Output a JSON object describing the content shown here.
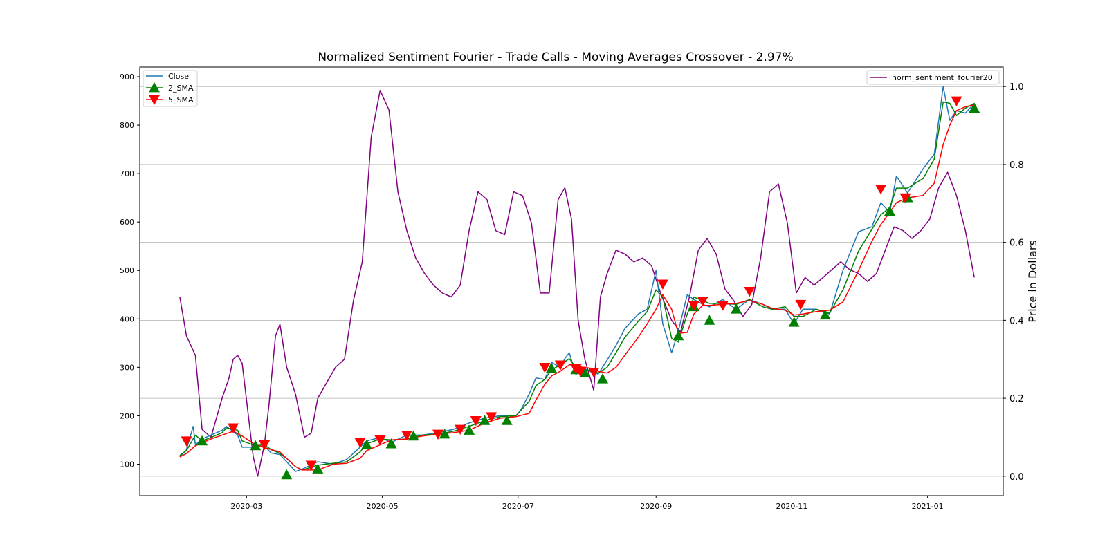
{
  "chart_data": {
    "type": "line",
    "title": "Normalized Sentiment Fourier - Trade Calls - Moving Averages Crossover - 2.97%",
    "xlabel": "",
    "ylabel_left": "",
    "ylabel_right": "Price in Dollars",
    "x_ticks": [
      "2020-03",
      "2020-05",
      "2020-07",
      "2020-09",
      "2020-11",
      "2021-01"
    ],
    "x_tick_dates": [
      "2020-03-01",
      "2020-05-01",
      "2020-07-01",
      "2020-09-01",
      "2020-11-01",
      "2021-01-01"
    ],
    "x_range": [
      "2020-01-13",
      "2021-02-04"
    ],
    "ylim_left": [
      35,
      920
    ],
    "yticks_left": [
      100,
      200,
      300,
      400,
      500,
      600,
      700,
      800,
      900
    ],
    "ylim_right": [
      -0.05,
      1.05
    ],
    "yticks_right": [
      "0.0",
      "0.2",
      "0.4",
      "0.6",
      "0.8",
      "1.0"
    ],
    "grid": "horizontal grid on right axis",
    "legend_left_placement": "upper left",
    "legend_right_placement": "upper right",
    "colors": {
      "close": "#1f77b4",
      "sma2": "#008000",
      "sma5": "#ff0000",
      "sentiment": "#800080",
      "buy_marker": "#008000",
      "sell_marker": "#ff0000"
    },
    "legend_left": [
      {
        "label": "Close",
        "color": "#1f77b4",
        "marker": "none"
      },
      {
        "label": "2_SMA",
        "color": "#008000",
        "marker": "triangle-up"
      },
      {
        "label": "5_SMA",
        "color": "#ff0000",
        "marker": "triangle-down"
      }
    ],
    "legend_right": [
      {
        "label": "norm_sentiment_fourier20",
        "color": "#800080",
        "marker": "none"
      }
    ],
    "close": {
      "dates": [
        "2020-01-31",
        "2020-02-03",
        "2020-02-06",
        "2020-02-07",
        "2020-02-10",
        "2020-02-14",
        "2020-02-19",
        "2020-02-21",
        "2020-02-26",
        "2020-02-28",
        "2020-03-05",
        "2020-03-09",
        "2020-03-12",
        "2020-03-16",
        "2020-03-19",
        "2020-03-23",
        "2020-03-26",
        "2020-04-02",
        "2020-04-09",
        "2020-04-15",
        "2020-04-21",
        "2020-04-24",
        "2020-04-30",
        "2020-05-05",
        "2020-05-12",
        "2020-05-19",
        "2020-05-26",
        "2020-06-02",
        "2020-06-09",
        "2020-06-16",
        "2020-06-23",
        "2020-06-30",
        "2020-07-02",
        "2020-07-06",
        "2020-07-09",
        "2020-07-13",
        "2020-07-16",
        "2020-07-20",
        "2020-07-22",
        "2020-07-24",
        "2020-07-27",
        "2020-07-30",
        "2020-08-03",
        "2020-08-06",
        "2020-08-10",
        "2020-08-14",
        "2020-08-18",
        "2020-08-24",
        "2020-08-28",
        "2020-09-01",
        "2020-09-04",
        "2020-09-08",
        "2020-09-11",
        "2020-09-15",
        "2020-09-18",
        "2020-09-22",
        "2020-09-25",
        "2020-10-01",
        "2020-10-07",
        "2020-10-13",
        "2020-10-19",
        "2020-10-23",
        "2020-10-29",
        "2020-11-02",
        "2020-11-06",
        "2020-11-12",
        "2020-11-18",
        "2020-11-24",
        "2020-12-01",
        "2020-12-07",
        "2020-12-11",
        "2020-12-15",
        "2020-12-18",
        "2020-12-23",
        "2020-12-30",
        "2021-01-04",
        "2021-01-08",
        "2021-01-11",
        "2021-01-14",
        "2021-01-18",
        "2021-01-22"
      ],
      "values": [
        115,
        130,
        178,
        140,
        152,
        160,
        170,
        178,
        160,
        135,
        135,
        138,
        123,
        120,
        105,
        85,
        90,
        105,
        100,
        110,
        135,
        148,
        155,
        145,
        160,
        160,
        165,
        172,
        185,
        195,
        200,
        200,
        210,
        245,
        278,
        275,
        310,
        300,
        318,
        330,
        285,
        300,
        290,
        286,
        315,
        345,
        380,
        410,
        420,
        500,
        390,
        330,
        375,
        450,
        440,
        430,
        425,
        440,
        420,
        440,
        430,
        420,
        420,
        390,
        420,
        420,
        410,
        500,
        580,
        590,
        640,
        620,
        695,
        660,
        710,
        740,
        880,
        810,
        830,
        825,
        845
      ]
    },
    "sma2": {
      "dates": [
        "2020-01-31",
        "2020-02-03",
        "2020-02-07",
        "2020-02-10",
        "2020-02-14",
        "2020-02-19",
        "2020-02-21",
        "2020-02-26",
        "2020-02-28",
        "2020-03-05",
        "2020-03-09",
        "2020-03-12",
        "2020-03-16",
        "2020-03-19",
        "2020-03-23",
        "2020-03-26",
        "2020-04-02",
        "2020-04-09",
        "2020-04-15",
        "2020-04-21",
        "2020-04-24",
        "2020-04-30",
        "2020-05-05",
        "2020-05-12",
        "2020-05-19",
        "2020-05-26",
        "2020-06-02",
        "2020-06-09",
        "2020-06-16",
        "2020-06-23",
        "2020-06-30",
        "2020-07-06",
        "2020-07-09",
        "2020-07-13",
        "2020-07-16",
        "2020-07-20",
        "2020-07-24",
        "2020-07-27",
        "2020-07-30",
        "2020-08-03",
        "2020-08-06",
        "2020-08-10",
        "2020-08-14",
        "2020-08-18",
        "2020-08-24",
        "2020-08-28",
        "2020-09-01",
        "2020-09-04",
        "2020-09-08",
        "2020-09-11",
        "2020-09-15",
        "2020-09-18",
        "2020-09-25",
        "2020-10-01",
        "2020-10-07",
        "2020-10-13",
        "2020-10-19",
        "2020-10-23",
        "2020-10-29",
        "2020-11-02",
        "2020-11-06",
        "2020-11-12",
        "2020-11-18",
        "2020-11-24",
        "2020-12-01",
        "2020-12-07",
        "2020-12-11",
        "2020-12-15",
        "2020-12-18",
        "2020-12-23",
        "2020-12-30",
        "2021-01-04",
        "2021-01-08",
        "2021-01-11",
        "2021-01-14",
        "2021-01-18",
        "2021-01-22"
      ],
      "values": [
        118,
        128,
        160,
        148,
        155,
        165,
        175,
        170,
        148,
        138,
        140,
        130,
        122,
        112,
        95,
        88,
        98,
        102,
        105,
        125,
        142,
        152,
        150,
        152,
        160,
        162,
        168,
        178,
        190,
        198,
        200,
        230,
        262,
        275,
        295,
        305,
        318,
        300,
        292,
        295,
        288,
        300,
        330,
        362,
        395,
        415,
        460,
        445,
        360,
        352,
        410,
        445,
        432,
        432,
        430,
        440,
        425,
        420,
        425,
        405,
        405,
        420,
        412,
        460,
        540,
        585,
        615,
        630,
        670,
        670,
        690,
        730,
        848,
        845,
        820,
        835,
        845
      ]
    },
    "sma5": {
      "dates": [
        "2020-01-31",
        "2020-02-03",
        "2020-02-07",
        "2020-02-14",
        "2020-02-19",
        "2020-02-24",
        "2020-02-28",
        "2020-03-05",
        "2020-03-12",
        "2020-03-16",
        "2020-03-19",
        "2020-03-23",
        "2020-03-26",
        "2020-04-02",
        "2020-04-09",
        "2020-04-15",
        "2020-04-21",
        "2020-04-24",
        "2020-04-30",
        "2020-05-05",
        "2020-05-12",
        "2020-05-19",
        "2020-05-26",
        "2020-06-02",
        "2020-06-09",
        "2020-06-16",
        "2020-06-23",
        "2020-06-30",
        "2020-07-06",
        "2020-07-09",
        "2020-07-13",
        "2020-07-16",
        "2020-07-20",
        "2020-07-24",
        "2020-07-27",
        "2020-07-30",
        "2020-08-03",
        "2020-08-06",
        "2020-08-10",
        "2020-08-14",
        "2020-08-18",
        "2020-08-24",
        "2020-08-28",
        "2020-09-01",
        "2020-09-04",
        "2020-09-08",
        "2020-09-11",
        "2020-09-15",
        "2020-09-18",
        "2020-09-22",
        "2020-09-25",
        "2020-10-01",
        "2020-10-07",
        "2020-10-13",
        "2020-10-19",
        "2020-10-23",
        "2020-10-29",
        "2020-11-02",
        "2020-11-06",
        "2020-11-12",
        "2020-11-18",
        "2020-11-24",
        "2020-12-01",
        "2020-12-07",
        "2020-12-11",
        "2020-12-15",
        "2020-12-18",
        "2020-12-23",
        "2020-12-30",
        "2021-01-04",
        "2021-01-08",
        "2021-01-11",
        "2021-01-14",
        "2021-01-18",
        "2021-01-22"
      ],
      "values": [
        115,
        122,
        138,
        152,
        160,
        168,
        158,
        140,
        130,
        125,
        112,
        95,
        88,
        88,
        100,
        102,
        112,
        128,
        140,
        150,
        152,
        158,
        162,
        165,
        170,
        185,
        195,
        198,
        205,
        232,
        265,
        282,
        292,
        305,
        305,
        300,
        298,
        292,
        288,
        300,
        325,
        362,
        390,
        420,
        450,
        420,
        370,
        372,
        410,
        428,
        428,
        430,
        432,
        438,
        430,
        422,
        418,
        408,
        410,
        415,
        418,
        435,
        500,
        560,
        595,
        620,
        640,
        650,
        655,
        680,
        760,
        800,
        830,
        838,
        842
      ]
    },
    "buy_signals": {
      "dates": [
        "2020-02-10",
        "2020-03-05",
        "2020-03-19",
        "2020-04-02",
        "2020-04-24",
        "2020-05-05",
        "2020-05-15",
        "2020-05-29",
        "2020-06-09",
        "2020-06-16",
        "2020-06-26",
        "2020-07-16",
        "2020-07-27",
        "2020-07-31",
        "2020-08-08",
        "2020-09-11",
        "2020-09-18",
        "2020-09-25",
        "2020-10-07",
        "2020-11-02",
        "2020-11-16",
        "2020-12-15",
        "2020-12-23",
        "2021-01-22"
      ],
      "values": [
        148,
        138,
        78,
        90,
        140,
        142,
        158,
        162,
        170,
        190,
        190,
        298,
        295,
        289,
        276,
        365,
        425,
        397,
        420,
        393,
        408,
        622,
        650,
        835
      ]
    },
    "sell_signals": {
      "dates": [
        "2020-02-03",
        "2020-02-24",
        "2020-03-09",
        "2020-03-30",
        "2020-04-21",
        "2020-04-30",
        "2020-05-12",
        "2020-05-26",
        "2020-06-05",
        "2020-06-12",
        "2020-06-19",
        "2020-07-13",
        "2020-07-20",
        "2020-07-27",
        "2020-07-29",
        "2020-08-04",
        "2020-09-04",
        "2020-09-18",
        "2020-09-22",
        "2020-10-01",
        "2020-10-13",
        "2020-11-05",
        "2020-12-11",
        "2020-12-22",
        "2021-01-14"
      ],
      "values": [
        148,
        175,
        140,
        98,
        145,
        150,
        160,
        162,
        172,
        190,
        198,
        300,
        305,
        297,
        292,
        290,
        472,
        428,
        437,
        428,
        457,
        430,
        668,
        650,
        850
      ]
    },
    "sentiment": {
      "dates": [
        "2020-01-31",
        "2020-02-03",
        "2020-02-07",
        "2020-02-10",
        "2020-02-14",
        "2020-02-19",
        "2020-02-22",
        "2020-02-24",
        "2020-02-26",
        "2020-02-28",
        "2020-03-04",
        "2020-03-06",
        "2020-03-09",
        "2020-03-11",
        "2020-03-14",
        "2020-03-16",
        "2020-03-19",
        "2020-03-23",
        "2020-03-27",
        "2020-03-30",
        "2020-04-02",
        "2020-04-06",
        "2020-04-10",
        "2020-04-14",
        "2020-04-18",
        "2020-04-22",
        "2020-04-26",
        "2020-04-30",
        "2020-05-04",
        "2020-05-08",
        "2020-05-12",
        "2020-05-16",
        "2020-05-20",
        "2020-05-24",
        "2020-05-28",
        "2020-06-01",
        "2020-06-05",
        "2020-06-09",
        "2020-06-13",
        "2020-06-17",
        "2020-06-21",
        "2020-06-25",
        "2020-06-29",
        "2020-07-03",
        "2020-07-07",
        "2020-07-11",
        "2020-07-15",
        "2020-07-19",
        "2020-07-22",
        "2020-07-25",
        "2020-07-28",
        "2020-07-31",
        "2020-08-04",
        "2020-08-07",
        "2020-08-10",
        "2020-08-14",
        "2020-08-18",
        "2020-08-22",
        "2020-08-26",
        "2020-08-30",
        "2020-09-03",
        "2020-09-08",
        "2020-09-12",
        "2020-09-16",
        "2020-09-20",
        "2020-09-24",
        "2020-09-28",
        "2020-10-02",
        "2020-10-06",
        "2020-10-10",
        "2020-10-14",
        "2020-10-18",
        "2020-10-22",
        "2020-10-26",
        "2020-10-30",
        "2020-11-03",
        "2020-11-07",
        "2020-11-11",
        "2020-11-15",
        "2020-11-19",
        "2020-11-23",
        "2020-11-27",
        "2020-12-01",
        "2020-12-05",
        "2020-12-09",
        "2020-12-13",
        "2020-12-17",
        "2020-12-21",
        "2020-12-25",
        "2020-12-29",
        "2021-01-02",
        "2021-01-06",
        "2021-01-10",
        "2021-01-14",
        "2021-01-18",
        "2021-01-22"
      ],
      "values": [
        0.46,
        0.36,
        0.31,
        0.12,
        0.1,
        0.2,
        0.25,
        0.3,
        0.31,
        0.29,
        0.05,
        0.0,
        0.08,
        0.18,
        0.36,
        0.39,
        0.28,
        0.21,
        0.1,
        0.11,
        0.2,
        0.24,
        0.28,
        0.3,
        0.45,
        0.55,
        0.87,
        0.99,
        0.94,
        0.73,
        0.63,
        0.56,
        0.52,
        0.49,
        0.47,
        0.46,
        0.49,
        0.63,
        0.73,
        0.71,
        0.63,
        0.62,
        0.73,
        0.72,
        0.65,
        0.47,
        0.47,
        0.71,
        0.74,
        0.66,
        0.4,
        0.3,
        0.22,
        0.46,
        0.52,
        0.58,
        0.57,
        0.55,
        0.56,
        0.54,
        0.47,
        0.4,
        0.37,
        0.46,
        0.58,
        0.61,
        0.57,
        0.48,
        0.45,
        0.41,
        0.44,
        0.56,
        0.73,
        0.75,
        0.65,
        0.47,
        0.51,
        0.49,
        0.51,
        0.53,
        0.55,
        0.53,
        0.52,
        0.5,
        0.52,
        0.58,
        0.64,
        0.63,
        0.61,
        0.63,
        0.66,
        0.74,
        0.78,
        0.72,
        0.63,
        0.51
      ]
    }
  }
}
